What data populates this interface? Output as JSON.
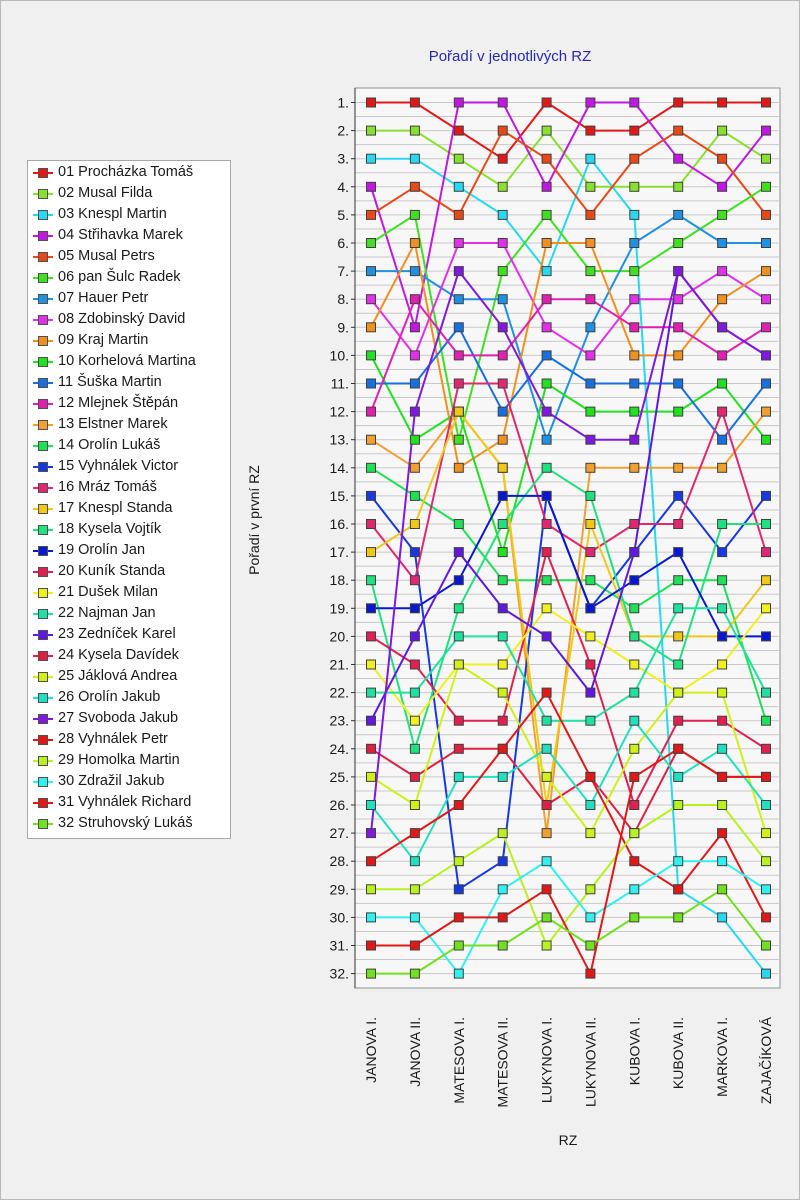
{
  "chart_data": {
    "type": "line",
    "title": "Pořadí v jednotlivých RZ",
    "xlabel": "RZ",
    "ylabel": "Pořadí v první RZ",
    "categories": [
      "JANOVA I.",
      "JANOVA II.",
      "MATESOVA I.",
      "MATESOVA II.",
      "LUKYNOVA I.",
      "LUKYNOVA II.",
      "KUBOVA I.",
      "KUBOVA II.",
      "MARKOVA I.",
      "ZAJAČÍKOVÁ"
    ],
    "y_tick_labels": [
      "1.",
      "2.",
      "3.",
      "4.",
      "5.",
      "6.",
      "7.",
      "8.",
      "9.",
      "10.",
      "11.",
      "12.",
      "13.",
      "14.",
      "15.",
      "16.",
      "17.",
      "18.",
      "19.",
      "20.",
      "21.",
      "22.",
      "23.",
      "24.",
      "25.",
      "26.",
      "27.",
      "28.",
      "29.",
      "30.",
      "31.",
      "32."
    ],
    "ylim": [
      1,
      32
    ],
    "y_inverted": true,
    "grid": true,
    "legend_position": "left",
    "series": [
      {
        "name": "01 Procházka Tomáš",
        "color": "#e01818",
        "values": [
          1,
          1,
          2,
          3,
          1,
          2,
          2,
          1,
          1,
          1
        ]
      },
      {
        "name": "02 Musal Filda",
        "color": "#88e030",
        "values": [
          2,
          2,
          3,
          4,
          2,
          4,
          4,
          4,
          2,
          3
        ]
      },
      {
        "name": "03 Knespl Martin",
        "color": "#28d8f0",
        "values": [
          3,
          3,
          4,
          5,
          7,
          3,
          5,
          29,
          30,
          32
        ]
      },
      {
        "name": "04 Střihavka Marek",
        "color": "#c018e0",
        "values": [
          4,
          9,
          1,
          1,
          4,
          1,
          1,
          3,
          4,
          2
        ]
      },
      {
        "name": "05 Musal Petrs",
        "color": "#e84818",
        "values": [
          5,
          4,
          5,
          2,
          3,
          5,
          3,
          2,
          3,
          5
        ]
      },
      {
        "name": "06 pan Šulc Radek",
        "color": "#40e020",
        "values": [
          6,
          5,
          13,
          7,
          5,
          7,
          7,
          6,
          5,
          4
        ]
      },
      {
        "name": "07 Hauer Petr",
        "color": "#2090e0",
        "values": [
          7,
          7,
          8,
          8,
          13,
          9,
          6,
          5,
          6,
          6
        ]
      },
      {
        "name": "08 Zdobinský David",
        "color": "#e030e8",
        "values": [
          8,
          10,
          6,
          6,
          9,
          10,
          8,
          8,
          7,
          8
        ]
      },
      {
        "name": "09 Kraj Martin",
        "color": "#f09020",
        "values": [
          9,
          6,
          14,
          13,
          6,
          6,
          10,
          10,
          8,
          7
        ]
      },
      {
        "name": "10 Korhelová Martina",
        "color": "#20e020",
        "values": [
          10,
          13,
          12,
          17,
          11,
          12,
          12,
          12,
          11,
          13
        ]
      },
      {
        "name": "11 Šuška Martin",
        "color": "#1870e0",
        "values": [
          11,
          11,
          9,
          12,
          10,
          11,
          11,
          11,
          13,
          11
        ]
      },
      {
        "name": "12 Mlejnek Štěpán",
        "color": "#e020b0",
        "values": [
          12,
          8,
          10,
          10,
          8,
          8,
          9,
          9,
          10,
          9
        ]
      },
      {
        "name": "13 Elstner Marek",
        "color": "#f0a030",
        "values": [
          13,
          14,
          12,
          14,
          27,
          14,
          14,
          14,
          14,
          12
        ]
      },
      {
        "name": "14 Orolín Lukáš",
        "color": "#20e058",
        "values": [
          14,
          15,
          16,
          18,
          18,
          18,
          19,
          18,
          18,
          23
        ]
      },
      {
        "name": "15 Vyhnálek Victor",
        "color": "#1838e0",
        "values": [
          15,
          17,
          29,
          28,
          15,
          19,
          17,
          15,
          17,
          15
        ]
      },
      {
        "name": "16 Mráz Tomáš",
        "color": "#e02870",
        "values": [
          16,
          18,
          11,
          11,
          16,
          17,
          16,
          16,
          12,
          17
        ]
      },
      {
        "name": "17 Knespl Standa",
        "color": "#f0c818",
        "values": [
          17,
          16,
          12,
          14,
          26,
          16,
          20,
          20,
          20,
          18
        ]
      },
      {
        "name": "18 Kysela Vojtík",
        "color": "#20e080",
        "values": [
          18,
          24,
          19,
          16,
          14,
          15,
          20,
          21,
          16,
          16
        ]
      },
      {
        "name": "19 Orolín Jan",
        "color": "#0818d0",
        "values": [
          19,
          19,
          18,
          15,
          15,
          19,
          18,
          17,
          20,
          20
        ]
      },
      {
        "name": "20 Kuník Standa",
        "color": "#e02050",
        "values": [
          20,
          21,
          23,
          23,
          17,
          21,
          26,
          23,
          23,
          24
        ]
      },
      {
        "name": "21 Dušek Milan",
        "color": "#f0f020",
        "values": [
          21,
          23,
          21,
          21,
          19,
          20,
          21,
          22,
          21,
          19
        ]
      },
      {
        "name": "22 Najman Jan",
        "color": "#20e0a0",
        "values": [
          22,
          22,
          20,
          20,
          23,
          23,
          22,
          19,
          19,
          22
        ]
      },
      {
        "name": "23 Zedníček Karel",
        "color": "#6018e0",
        "values": [
          23,
          20,
          17,
          19,
          20,
          22,
          17,
          7,
          9,
          10
        ]
      },
      {
        "name": "24 Kysela Davídek",
        "color": "#e02040",
        "values": [
          24,
          25,
          24,
          24,
          26,
          25,
          27,
          24,
          25,
          25
        ]
      },
      {
        "name": "25 Jáklová Andrea",
        "color": "#d0f018",
        "values": [
          25,
          26,
          21,
          22,
          25,
          27,
          24,
          22,
          22,
          27
        ]
      },
      {
        "name": "26 Orolín Jakub",
        "color": "#20e0c0",
        "values": [
          26,
          28,
          25,
          25,
          24,
          26,
          23,
          25,
          24,
          26
        ]
      },
      {
        "name": "27 Svoboda Jakub",
        "color": "#8018e0",
        "values": [
          27,
          12,
          7,
          9,
          12,
          13,
          13,
          7,
          9,
          10
        ]
      },
      {
        "name": "28 Vyhnálek Petr",
        "color": "#e01818",
        "values": [
          28,
          27,
          26,
          24,
          22,
          25,
          28,
          29,
          27,
          30
        ]
      },
      {
        "name": "29 Homolka Martin",
        "color": "#b8f020",
        "values": [
          29,
          29,
          28,
          27,
          31,
          29,
          27,
          26,
          26,
          28
        ]
      },
      {
        "name": "30 Zdražil Jakub",
        "color": "#30f0f0",
        "values": [
          30,
          30,
          32,
          29,
          28,
          30,
          29,
          28,
          28,
          29
        ]
      },
      {
        "name": "31 Vyhnálek Richard",
        "color": "#e01818",
        "values": [
          31,
          31,
          30,
          30,
          29,
          32,
          25,
          24,
          25,
          25
        ]
      },
      {
        "name": "32 Struhovský Lukáš",
        "color": "#70e020",
        "values": [
          32,
          32,
          31,
          31,
          30,
          31,
          30,
          30,
          29,
          31
        ]
      }
    ]
  }
}
